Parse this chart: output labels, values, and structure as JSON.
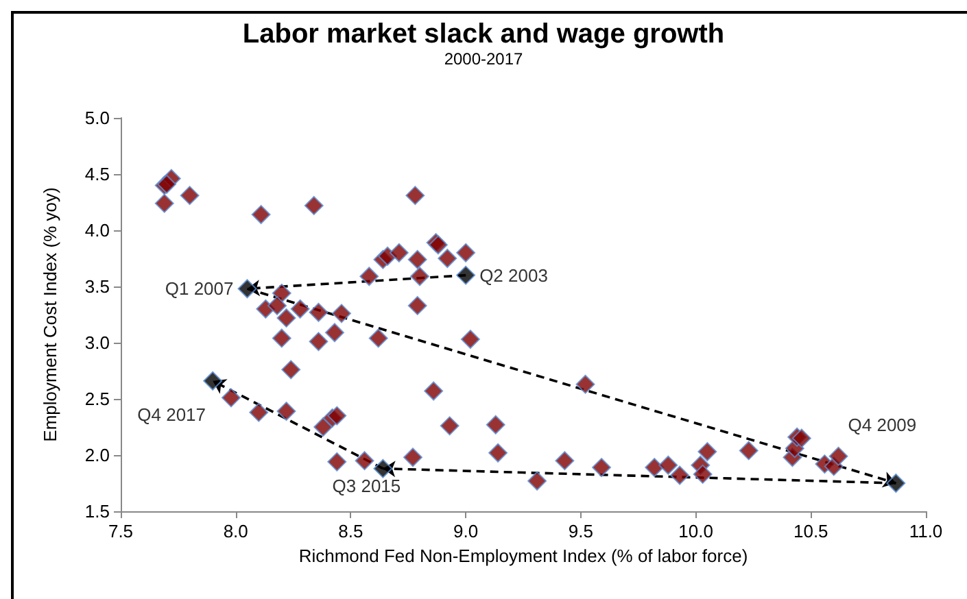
{
  "chart_data": {
    "type": "scatter",
    "title": "Labor market slack and wage growth",
    "subtitle": "2000-2017",
    "xlabel": "Richmond Fed Non-Employment Index (% of labor force)",
    "ylabel": "Employment Cost Index (% yoy)",
    "xlim": [
      7.5,
      11.0
    ],
    "xticks": [
      {
        "value": 7.5,
        "label": "7.5"
      },
      {
        "value": 8,
        "label": "8.0"
      },
      {
        "value": 8.5,
        "label": "8.5"
      },
      {
        "value": 9,
        "label": "9.0"
      },
      {
        "value": 9.5,
        "label": "9.5"
      },
      {
        "value": 10,
        "label": "10.0"
      },
      {
        "value": 10.5,
        "label": "10.5"
      },
      {
        "value": 11,
        "label": "11.0"
      }
    ],
    "ylim": [
      1.5,
      5.0
    ],
    "yticks": [
      {
        "value": 1.5,
        "label": "1.5"
      },
      {
        "value": 2,
        "label": "2.0"
      },
      {
        "value": 2.5,
        "label": "2.5"
      },
      {
        "value": 3,
        "label": "3.0"
      },
      {
        "value": 3.5,
        "label": "3.5"
      },
      {
        "value": 4,
        "label": "4.0"
      },
      {
        "value": 4.5,
        "label": "4.5"
      },
      {
        "value": 5,
        "label": "5.0"
      }
    ],
    "grid": false,
    "marker": "diamond",
    "series": [
      {
        "color": "#7f0000",
        "x": [
          7.69,
          7.69,
          7.72,
          7.7,
          7.8,
          8.11,
          8.34,
          8.78,
          8.58,
          8.64,
          8.66,
          8.71,
          8.79,
          8.8,
          8.87,
          8.88,
          8.92,
          9.0,
          8.79,
          8.2,
          8.13,
          8.18,
          8.22,
          8.28,
          8.36,
          8.46,
          8.43,
          8.2,
          8.36,
          8.62,
          9.02,
          8.24,
          7.98,
          8.1,
          8.22,
          8.38,
          8.42,
          8.44,
          8.44,
          8.56,
          8.77,
          8.86,
          8.93,
          9.13,
          9.14,
          9.31,
          9.52,
          9.43,
          9.59,
          9.82,
          9.88,
          9.93,
          10.02,
          10.03,
          10.05,
          10.23,
          10.42,
          10.43,
          10.44,
          10.46,
          10.56,
          10.6,
          10.62
        ],
        "values": [
          4.24,
          4.4,
          4.46,
          4.41,
          4.31,
          4.14,
          4.22,
          4.31,
          3.59,
          3.74,
          3.77,
          3.8,
          3.74,
          3.59,
          3.89,
          3.87,
          3.75,
          3.8,
          3.33,
          3.44,
          3.3,
          3.33,
          3.22,
          3.3,
          3.27,
          3.26,
          3.09,
          3.04,
          3.01,
          3.04,
          3.03,
          2.76,
          2.51,
          2.38,
          2.39,
          2.25,
          2.33,
          2.35,
          1.94,
          1.95,
          1.98,
          2.57,
          2.26,
          2.27,
          2.02,
          1.77,
          2.63,
          1.95,
          1.89,
          1.89,
          1.91,
          1.82,
          1.91,
          1.83,
          2.03,
          2.04,
          1.98,
          2.06,
          2.16,
          2.15,
          1.92,
          1.9,
          1.99
        ]
      },
      {
        "color": "#000000",
        "x": [
          9.0,
          8.05,
          10.87,
          8.64,
          7.9
        ],
        "values": [
          3.6,
          3.48,
          1.75,
          1.88,
          2.66
        ]
      }
    ],
    "annotations": [
      {
        "text": "Q2 2003",
        "x": 9.0,
        "y": 3.6
      },
      {
        "text": "Q1 2007",
        "x": 8.05,
        "y": 3.48
      },
      {
        "text": "Q4 2009",
        "x": 10.87,
        "y": 1.75
      },
      {
        "text": "Q3 2015",
        "x": 8.64,
        "y": 1.88
      },
      {
        "text": "Q4 2017",
        "x": 7.9,
        "y": 2.66
      }
    ]
  }
}
